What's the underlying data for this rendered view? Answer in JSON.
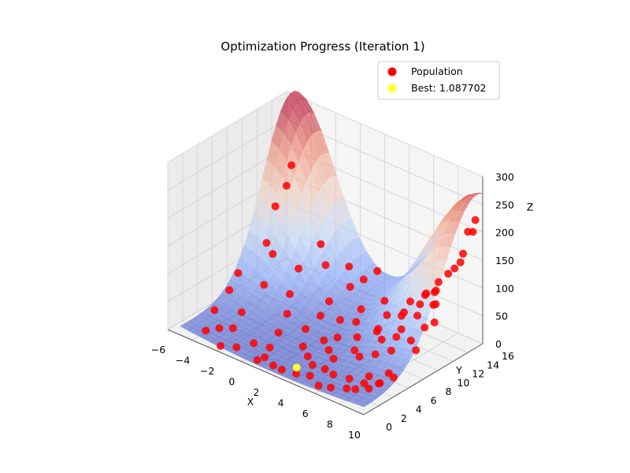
{
  "chart_data": {
    "type": "scatter",
    "title": "Optimization Progress (Iteration 1)",
    "xlabel": "X",
    "ylabel": "Y",
    "zlabel": "Z",
    "x_ticks": [
      "−6",
      "−4",
      "−2",
      "0",
      "2",
      "4",
      "6",
      "8",
      "10"
    ],
    "y_ticks": [
      "0",
      "2",
      "4",
      "6",
      "8",
      "10",
      "12",
      "14",
      "16"
    ],
    "z_ticks": [
      "0",
      "50",
      "100",
      "150",
      "200",
      "250",
      "300"
    ],
    "xlim": [
      -6,
      10
    ],
    "ylim": [
      0,
      16
    ],
    "zlim": [
      0,
      300
    ],
    "surface": {
      "colormap": "coolwarm",
      "alpha": 0.6,
      "function": "z grows to ~300 toward the corners x=-5,y=15 and x=10,y=15; low (<50) across the centre"
    },
    "legend": {
      "placement": "top-right"
    },
    "series": [
      {
        "name": "Population",
        "color": "#ff0000",
        "points": [
          [
            -5,
            15,
            185
          ],
          [
            -4.5,
            13.5,
            165
          ],
          [
            -4.5,
            12,
            140
          ],
          [
            -4,
            10,
            95
          ],
          [
            -4.5,
            7,
            60
          ],
          [
            -4,
            5,
            50
          ],
          [
            -4,
            3,
            30
          ],
          [
            -3,
            2,
            15
          ],
          [
            -3.5,
            1,
            14
          ],
          [
            -2,
            0.5,
            5
          ],
          [
            -1,
            1,
            8
          ],
          [
            -2.5,
            3,
            12
          ],
          [
            -3,
            5,
            20
          ],
          [
            -3,
            8,
            45
          ],
          [
            -2,
            11,
            60
          ],
          [
            -1,
            13,
            60
          ],
          [
            0,
            14.5,
            55
          ],
          [
            -2,
            14,
            80
          ],
          [
            -1.5,
            9,
            35
          ],
          [
            -0.5,
            7,
            25
          ],
          [
            0,
            5,
            12
          ],
          [
            0.5,
            3,
            6
          ],
          [
            1,
            1.5,
            5
          ],
          [
            1,
            0.5,
            8
          ],
          [
            2,
            1,
            4
          ],
          [
            3,
            0.5,
            10
          ],
          [
            4,
            0.8,
            10
          ],
          [
            5,
            1,
            14
          ],
          [
            6,
            0.5,
            10
          ],
          [
            7,
            0.5,
            16
          ],
          [
            8,
            1,
            20
          ],
          [
            9,
            0.5,
            32
          ],
          [
            9.5,
            1.5,
            30
          ],
          [
            10,
            2,
            40
          ],
          [
            9.5,
            3,
            28
          ],
          [
            10,
            4,
            35
          ],
          [
            9,
            5,
            25
          ],
          [
            8,
            4,
            18
          ],
          [
            7,
            3,
            12
          ],
          [
            6,
            2.5,
            14
          ],
          [
            5,
            3,
            10
          ],
          [
            4,
            3,
            8
          ],
          [
            3,
            4,
            6
          ],
          [
            2,
            5,
            6
          ],
          [
            1,
            7,
            12
          ],
          [
            1,
            9,
            20
          ],
          [
            0.5,
            11,
            25
          ],
          [
            1,
            13,
            40
          ],
          [
            2,
            15,
            62
          ],
          [
            1.5,
            14,
            50
          ],
          [
            2.5,
            12,
            22
          ],
          [
            2,
            10,
            14
          ],
          [
            3,
            8,
            8
          ],
          [
            3.5,
            6,
            6
          ],
          [
            4,
            9,
            10
          ],
          [
            4.5,
            11,
            14
          ],
          [
            4,
            13,
            18
          ],
          [
            5,
            14.5,
            40
          ],
          [
            6,
            15,
            60
          ],
          [
            7,
            15,
            90
          ],
          [
            8,
            15.5,
            120
          ],
          [
            9,
            15,
            160
          ],
          [
            9.5,
            15.5,
            200
          ],
          [
            10,
            15,
            230
          ],
          [
            9.7,
            14.5,
            210
          ],
          [
            10,
            13,
            170
          ],
          [
            9,
            13,
            140
          ],
          [
            8,
            13,
            100
          ],
          [
            7,
            12.5,
            70
          ],
          [
            6,
            12,
            50
          ],
          [
            5,
            10,
            22
          ],
          [
            6,
            9,
            25
          ],
          [
            7,
            10,
            45
          ],
          [
            8,
            10.5,
            75
          ],
          [
            9,
            11,
            100
          ],
          [
            9.5,
            9,
            80
          ],
          [
            9,
            8,
            60
          ],
          [
            8,
            7,
            40
          ],
          [
            7,
            6.5,
            28
          ],
          [
            6,
            6,
            18
          ],
          [
            5,
            7,
            12
          ],
          [
            4.5,
            5,
            8
          ],
          [
            3,
            10.5,
            16
          ],
          [
            8.5,
            12,
            110
          ],
          [
            9.5,
            10.5,
            110
          ],
          [
            10,
            7,
            60
          ],
          [
            10,
            9.5,
            90
          ],
          [
            6.5,
            14,
            70
          ],
          [
            5.5,
            12.5,
            35
          ],
          [
            7.5,
            8.5,
            48
          ],
          [
            -3.5,
            10,
            80
          ],
          [
            -0.5,
            2.5,
            8
          ],
          [
            3.5,
            13.5,
            35
          ],
          [
            2.5,
            7,
            6
          ],
          [
            8.5,
            2.5,
            22
          ]
        ]
      },
      {
        "name": "Best: 1.087702",
        "color": "#ffff33",
        "points": [
          [
            3.14,
            2.27,
            1.087702
          ]
        ]
      }
    ]
  }
}
